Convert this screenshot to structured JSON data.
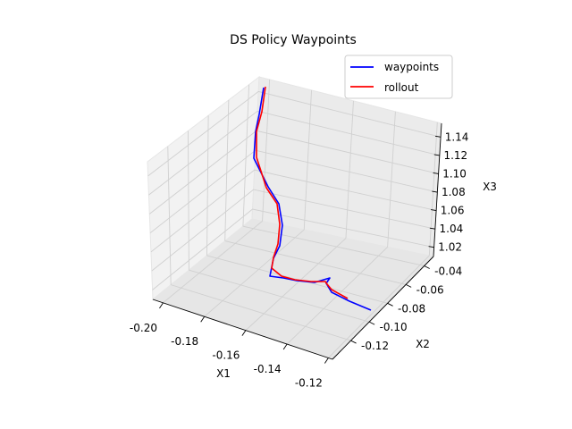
{
  "chart_data": {
    "type": "line",
    "title": "DS Policy Waypoints",
    "xlabel": "X1",
    "ylabel": "X2",
    "zlabel": "X3",
    "xlim": [
      -0.205,
      -0.118
    ],
    "ylim": [
      -0.135,
      -0.025
    ],
    "zlim": [
      1.01,
      1.155
    ],
    "x_ticks": [
      "-0.20",
      "-0.18",
      "-0.16",
      "-0.14",
      "-0.12"
    ],
    "y_ticks": [
      "-0.04",
      "-0.06",
      "-0.08",
      "-0.10",
      "-0.12"
    ],
    "z_ticks": [
      "1.02",
      "1.04",
      "1.06",
      "1.08",
      "1.10",
      "1.12",
      "1.14"
    ],
    "legend_position": "top-right",
    "series": [
      {
        "name": "waypoints",
        "color": "#0000ff",
        "points": [
          [
            415,
            347
          ],
          [
            391,
            337
          ],
          [
            371,
            327
          ],
          [
            365,
            317
          ],
          [
            369,
            311
          ],
          [
            352,
            316
          ],
          [
            332,
            314
          ],
          [
            317,
            311
          ],
          [
            302,
            309
          ],
          [
            306,
            289
          ],
          [
            313,
            275
          ],
          [
            316,
            252
          ],
          [
            312,
            228
          ],
          [
            300,
            209
          ],
          [
            284,
            177
          ],
          [
            286,
            147
          ],
          [
            290,
            128
          ],
          [
            295,
            98
          ]
        ]
      },
      {
        "name": "rollout",
        "color": "#ff0000",
        "points": [
          [
            389,
            334
          ],
          [
            371,
            324
          ],
          [
            366,
            318
          ],
          [
            364,
            315
          ],
          [
            348,
            315
          ],
          [
            330,
            313
          ],
          [
            315,
            309
          ],
          [
            304,
            300
          ],
          [
            306,
            288
          ],
          [
            311,
            273
          ],
          [
            313,
            251
          ],
          [
            310,
            228
          ],
          [
            298,
            210
          ],
          [
            287,
            176
          ],
          [
            287,
            147
          ],
          [
            293,
            125
          ],
          [
            297,
            97
          ]
        ]
      }
    ]
  },
  "legend": {
    "items": [
      {
        "label": "waypoints",
        "color": "#0000ff"
      },
      {
        "label": "rollout",
        "color": "#ff0000"
      }
    ]
  }
}
